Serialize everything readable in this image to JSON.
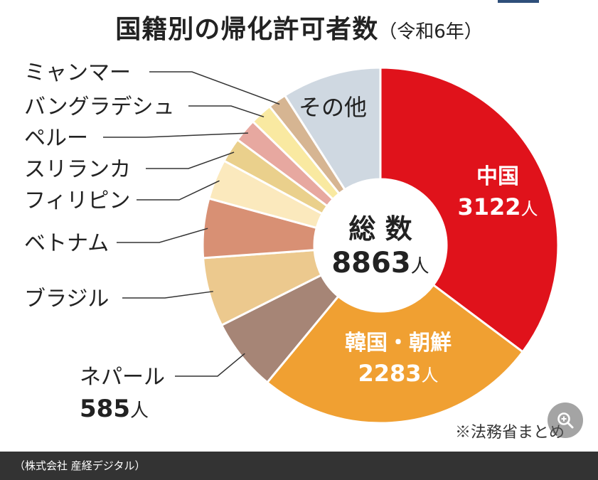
{
  "page": {
    "title_main": "国籍別の帰化許可者数",
    "title_sub": "（令和6年）",
    "source_note": "※法務省まとめ",
    "caption": "（株式会社 産経デジタル）",
    "zoom_icon": "zoom-in-icon"
  },
  "chart_data": {
    "type": "donut",
    "title": "国籍別の帰化許可者数",
    "subtitle": "（令和6年）",
    "center_label": "総 数",
    "total": 8863,
    "total_text": "8863",
    "unit": "人",
    "start_angle": 0,
    "slices": [
      {
        "label": "中国",
        "value": 3122,
        "value_text": "3122",
        "color": "#e0121b",
        "label_color": "#ffffff",
        "inside": true
      },
      {
        "label": "韓国・朝鮮",
        "value": 2283,
        "value_text": "2283",
        "color": "#f0a032",
        "label_color": "#ffffff",
        "inside": true
      },
      {
        "label": "ネパール",
        "value": 585,
        "value_text": "585",
        "color": "#a68576",
        "label_color": "#222222",
        "inside": false
      },
      {
        "label": "ブラジル",
        "value": 556,
        "color": "#ecc98e",
        "label_color": "#222222",
        "inside": false
      },
      {
        "label": "ベトナム",
        "value": 478,
        "color": "#d89074",
        "label_color": "#222222",
        "inside": false
      },
      {
        "label": "フィリピン",
        "value": 323,
        "color": "#fbe9bd",
        "label_color": "#222222",
        "inside": false
      },
      {
        "label": "スリランカ",
        "value": 198,
        "color": "#ead08c",
        "label_color": "#222222",
        "inside": false
      },
      {
        "label": "ペルー",
        "value": 189,
        "color": "#e7a8a0",
        "label_color": "#222222",
        "inside": false
      },
      {
        "label": "バングラデシュ",
        "value": 179,
        "color": "#f9e9a1",
        "label_color": "#222222",
        "inside": false
      },
      {
        "label": "ミャンマー",
        "value": 149,
        "color": "#d6b592",
        "label_color": "#222222",
        "inside": false
      },
      {
        "label": "その他",
        "value": 801,
        "color": "#cfd8e1",
        "label_color": "#222222",
        "inside": true
      }
    ]
  }
}
